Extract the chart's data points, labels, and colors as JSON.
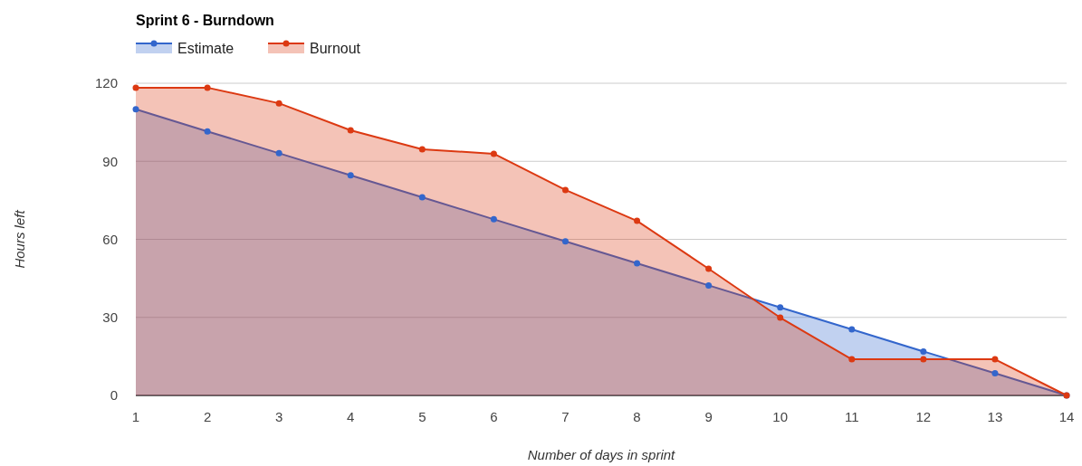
{
  "chart_data": {
    "type": "area",
    "title": "Sprint 6 - Burndown",
    "xlabel": "Number of days in sprint",
    "ylabel": "Hours left",
    "x": [
      1,
      2,
      3,
      4,
      5,
      6,
      7,
      8,
      9,
      10,
      11,
      12,
      13,
      14
    ],
    "series": [
      {
        "name": "Estimate",
        "color": "#3366cc",
        "values": [
          110,
          101.5,
          93.1,
          84.6,
          76.2,
          67.7,
          59.2,
          50.8,
          42.3,
          33.8,
          25.4,
          16.9,
          8.5,
          0
        ]
      },
      {
        "name": "Burnout",
        "color": "#dc3912",
        "values": [
          118.3,
          118.3,
          112.3,
          101.9,
          94.6,
          92.9,
          79,
          67.1,
          48.7,
          29.9,
          13.9,
          13.9,
          13.9,
          0
        ]
      }
    ],
    "xlim": [
      1,
      14
    ],
    "xticks": [
      1,
      2,
      3,
      4,
      5,
      6,
      7,
      8,
      9,
      10,
      11,
      12,
      13,
      14
    ],
    "ylim": [
      0,
      120
    ],
    "yticks": [
      0,
      30,
      60,
      90,
      120
    ],
    "grid": "y",
    "legend": "top left",
    "marker": "circle",
    "line_style": "solid"
  }
}
